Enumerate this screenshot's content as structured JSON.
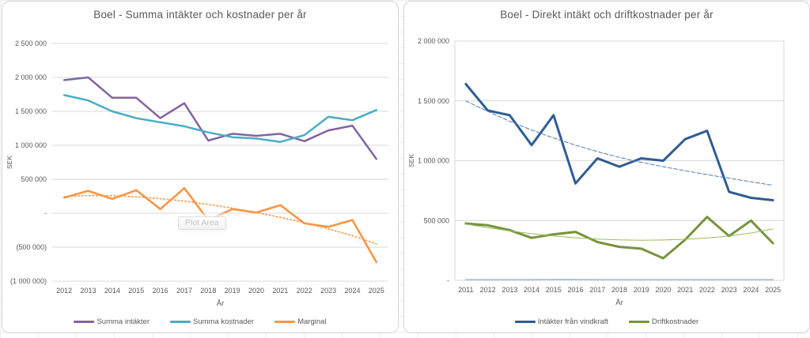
{
  "colors": {
    "axis_text": "#595959",
    "title_text": "#595959",
    "gridline": "#d9d9d9",
    "plot_border": "#d9d9d9",
    "card_border": "#d4d4d4",
    "tooltip_text": "#c4c4c4"
  },
  "chart_data": [
    {
      "type": "line",
      "title": "Boel - Summa intäkter och kostnader per år",
      "xlabel": "År",
      "ylabel": "SEK",
      "x": [
        "2012",
        "2013",
        "2014",
        "2015",
        "2016",
        "2017",
        "2018",
        "2019",
        "2020",
        "2021",
        "2022",
        "2023",
        "2024",
        "2025"
      ],
      "ylim": [
        -1000000,
        2500000
      ],
      "grid": true,
      "plot_border": false,
      "legend_position": "bottom",
      "plot_area_tooltip": "Plot Area",
      "yticks": [
        {
          "value": 2500000,
          "label": "2 500 000"
        },
        {
          "value": 2000000,
          "label": "2 000 000"
        },
        {
          "value": 1500000,
          "label": "1 500 000"
        },
        {
          "value": 1000000,
          "label": "1 000 000"
        },
        {
          "value": 500000,
          "label": "500 000"
        },
        {
          "value": 0,
          "label": "-"
        },
        {
          "value": -500000,
          "label": "(500 000)"
        },
        {
          "value": -1000000,
          "label": "(1 000 000)"
        }
      ],
      "series": [
        {
          "name": "Summa intäkter",
          "color": "#8064A2",
          "width": 2.5,
          "values": [
            1960000,
            2000000,
            1700000,
            1700000,
            1400000,
            1620000,
            1070000,
            1170000,
            1140000,
            1170000,
            1060000,
            1220000,
            1290000,
            800000
          ]
        },
        {
          "name": "Summa kostnader",
          "color": "#4BACC6",
          "width": 2.5,
          "values": [
            1740000,
            1660000,
            1500000,
            1400000,
            1340000,
            1280000,
            1190000,
            1120000,
            1100000,
            1050000,
            1150000,
            1420000,
            1370000,
            1520000
          ]
        },
        {
          "name": "Marginal",
          "color": "#F79646",
          "width": 2.6,
          "values": [
            230000,
            330000,
            210000,
            340000,
            60000,
            370000,
            -100000,
            60000,
            10000,
            120000,
            -150000,
            -200000,
            -100000,
            -720000
          ]
        },
        {
          "name": "Marginal trendlinje",
          "color": "#F79646",
          "width": 1.6,
          "dash": "1.5 3",
          "in_legend": false,
          "values": [
            245000,
            260000,
            258000,
            243000,
            215000,
            178000,
            130000,
            75000,
            10000,
            -60000,
            -140000,
            -230000,
            -330000,
            -450000
          ]
        }
      ]
    },
    {
      "type": "line",
      "title": "Boel - Direkt intäkt och driftkostnader per år",
      "xlabel": "År",
      "ylabel": "SEK",
      "x": [
        "2011",
        "2012",
        "2013",
        "2014",
        "2015",
        "2016",
        "2017",
        "2018",
        "2019",
        "2020",
        "2021",
        "2022",
        "2023",
        "2024",
        "2025"
      ],
      "ylim": [
        0,
        2000000
      ],
      "grid": true,
      "plot_border": true,
      "legend_position": "bottom",
      "yticks": [
        {
          "value": 2000000,
          "label": "2 000 000"
        },
        {
          "value": 1500000,
          "label": "1 500 000"
        },
        {
          "value": 1000000,
          "label": "1 000 000"
        },
        {
          "value": 500000,
          "label": "500 000"
        },
        {
          "value": 0,
          "label": "-"
        }
      ],
      "series": [
        {
          "name": "Intäkter från vindkraft",
          "color": "#2F5C94",
          "width": 3,
          "values": [
            1640000,
            1420000,
            1380000,
            1130000,
            1380000,
            810000,
            1020000,
            950000,
            1020000,
            1000000,
            1180000,
            1250000,
            740000,
            690000,
            670000
          ]
        },
        {
          "name": "Driftkostnader",
          "color": "#77933C",
          "width": 3,
          "values": [
            475000,
            460000,
            420000,
            355000,
            385000,
            405000,
            320000,
            280000,
            265000,
            185000,
            340000,
            530000,
            370000,
            500000,
            310000
          ]
        },
        {
          "name": "baslinje nära noll",
          "color": "#A8C0DE",
          "width": 1.8,
          "in_legend": false,
          "values": [
            5000,
            5000,
            5000,
            5000,
            7000,
            7000,
            5000,
            5000,
            5000,
            5000,
            5000,
            5000,
            5000,
            5000,
            5000
          ]
        },
        {
          "name": "Intäkter trendlinje",
          "color": "#4A7CB5",
          "width": 1,
          "dash": "5 2.5",
          "in_legend": false,
          "values": [
            1500000,
            1412000,
            1330000,
            1256000,
            1190000,
            1130000,
            1076000,
            1028000,
            986000,
            950000,
            916000,
            884000,
            854000,
            824000,
            795000
          ]
        },
        {
          "name": "Driftkostnader trendlinje",
          "color": "#9BBB59",
          "width": 1,
          "in_legend": false,
          "values": [
            470000,
            440000,
            413000,
            390000,
            371000,
            356000,
            345000,
            338000,
            335000,
            337000,
            343000,
            354000,
            370000,
            396000,
            430000
          ]
        }
      ]
    }
  ]
}
